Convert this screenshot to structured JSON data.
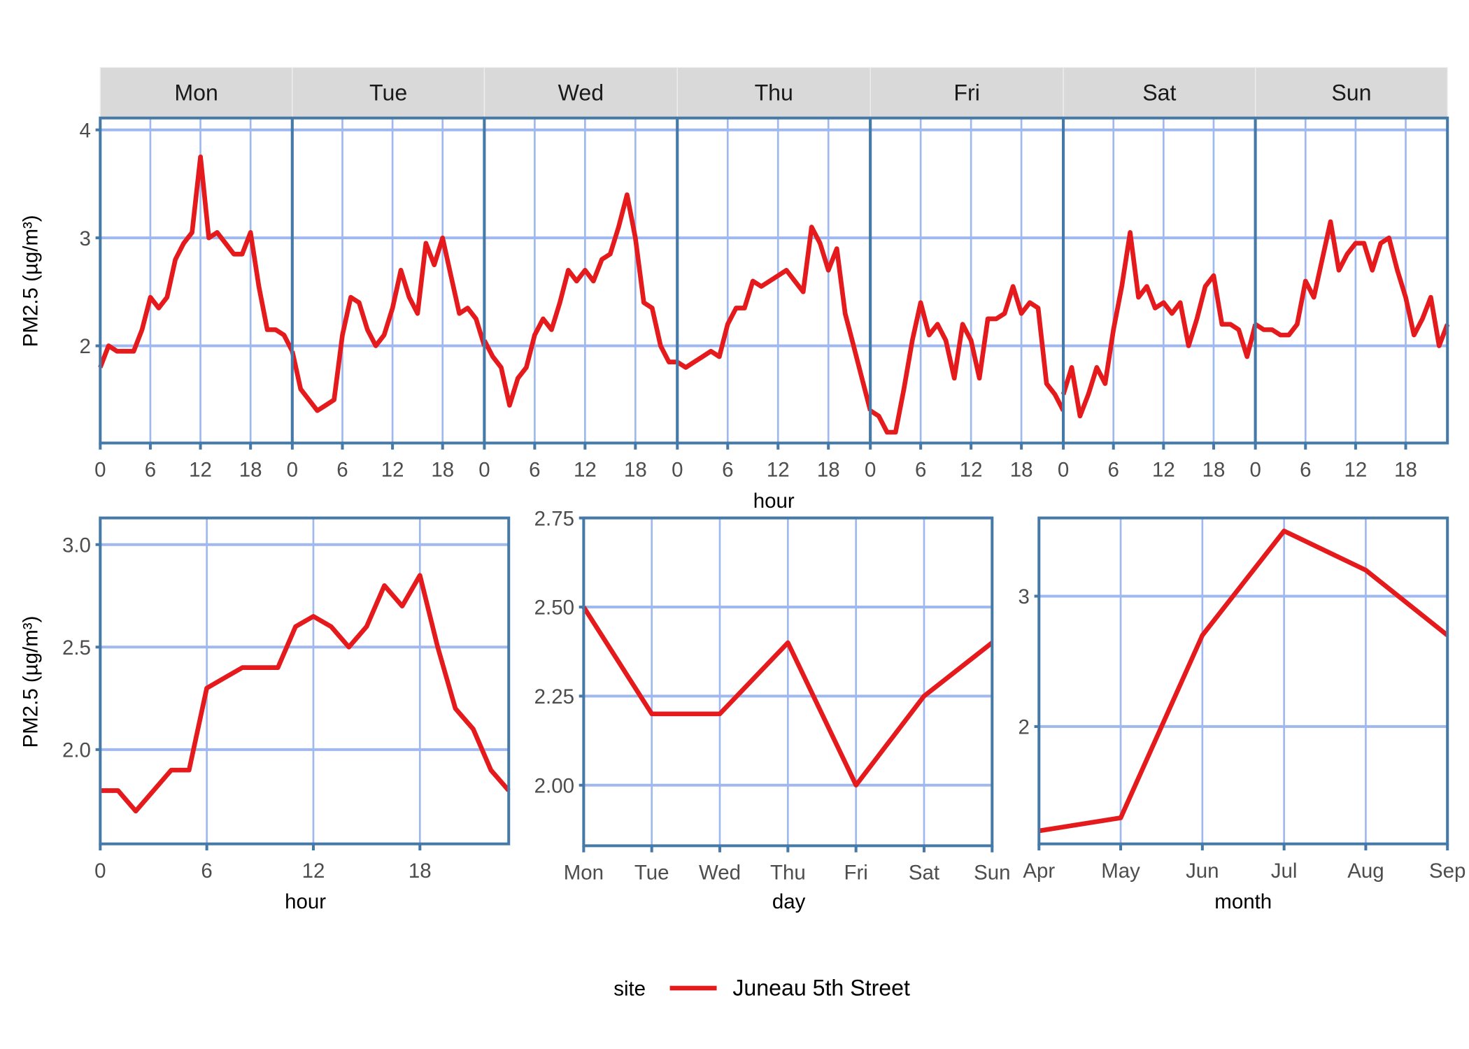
{
  "colors": {
    "line": "#E41A1C",
    "grid": "#A0B8F0",
    "border": "#4479A8",
    "strip": "#D9D9D9"
  },
  "legend": {
    "title": "site",
    "entries": [
      "Juneau 5th Street"
    ],
    "position": "bottom"
  },
  "chart_data": [
    {
      "type": "line",
      "facet_by": "day",
      "panels": [
        "Mon",
        "Tue",
        "Wed",
        "Thu",
        "Fri",
        "Sat",
        "Sun"
      ],
      "xlabel": "hour",
      "ylabel": "PM2.5 (µg/m³)",
      "xticks": [
        0,
        6,
        12,
        18
      ],
      "xlim": [
        0,
        23
      ],
      "yticks": [
        2,
        3,
        4
      ],
      "ytick_labels": [
        "2",
        "3",
        "4"
      ],
      "ylim": [
        1.1,
        4.11
      ],
      "grid": true,
      "series": [
        {
          "name": "Juneau 5th Street",
          "values": {
            "Mon": [
              1.8,
              2.0,
              1.95,
              1.95,
              1.95,
              2.15,
              2.45,
              2.35,
              2.45,
              2.8,
              2.95,
              3.05,
              3.75,
              3.0,
              3.05,
              2.95,
              2.85,
              2.85,
              3.05,
              2.55,
              2.15,
              2.15,
              2.1,
              1.95
            ],
            "Tue": [
              1.95,
              1.6,
              1.5,
              1.4,
              1.45,
              1.5,
              2.1,
              2.45,
              2.4,
              2.15,
              2.0,
              2.1,
              2.35,
              2.7,
              2.45,
              2.3,
              2.95,
              2.75,
              3.0,
              2.65,
              2.3,
              2.35,
              2.25,
              2.0
            ],
            "Wed": [
              2.05,
              1.9,
              1.8,
              1.45,
              1.7,
              1.8,
              2.1,
              2.25,
              2.15,
              2.4,
              2.7,
              2.6,
              2.7,
              2.6,
              2.8,
              2.85,
              3.1,
              3.4,
              3.0,
              2.4,
              2.35,
              2.0,
              1.85,
              1.85
            ],
            "Thu": [
              1.85,
              1.8,
              1.85,
              1.9,
              1.95,
              1.9,
              2.2,
              2.35,
              2.35,
              2.6,
              2.55,
              2.6,
              2.65,
              2.7,
              2.6,
              2.5,
              3.1,
              2.95,
              2.7,
              2.9,
              2.3,
              2.0,
              1.7,
              1.4
            ],
            "Fri": [
              1.4,
              1.35,
              1.2,
              1.2,
              1.6,
              2.05,
              2.4,
              2.1,
              2.2,
              2.05,
              1.7,
              2.2,
              2.05,
              1.7,
              2.25,
              2.25,
              2.3,
              2.55,
              2.3,
              2.4,
              2.35,
              1.65,
              1.55,
              1.4
            ],
            "Sat": [
              1.55,
              1.8,
              1.35,
              1.55,
              1.8,
              1.65,
              2.15,
              2.55,
              3.05,
              2.45,
              2.55,
              2.35,
              2.4,
              2.3,
              2.4,
              2.0,
              2.25,
              2.55,
              2.65,
              2.2,
              2.2,
              2.15,
              1.9,
              2.2
            ],
            "Sun": [
              2.2,
              2.15,
              2.15,
              2.1,
              2.1,
              2.2,
              2.6,
              2.45,
              2.8,
              3.15,
              2.7,
              2.85,
              2.95,
              2.95,
              2.7,
              2.95,
              3.0,
              2.7,
              2.45,
              2.1,
              2.25,
              2.45,
              2.0,
              2.2
            ]
          }
        }
      ]
    },
    {
      "type": "line",
      "xlabel": "hour",
      "ylabel": "PM2.5 (µg/m³)",
      "x": [
        0,
        1,
        2,
        3,
        4,
        5,
        6,
        7,
        8,
        9,
        10,
        11,
        12,
        13,
        14,
        15,
        16,
        17,
        18,
        19,
        20,
        21,
        22,
        23
      ],
      "xticks": [
        0,
        6,
        12,
        18
      ],
      "xlim": [
        0,
        23
      ],
      "yticks": [
        2.0,
        2.5,
        3.0
      ],
      "ytick_labels": [
        "2.0",
        "2.5",
        "3.0"
      ],
      "ylim": [
        1.54,
        3.13
      ],
      "grid": true,
      "series": [
        {
          "name": "Juneau 5th Street",
          "values": [
            1.8,
            1.8,
            1.7,
            1.8,
            1.9,
            1.9,
            2.3,
            2.35,
            2.4,
            2.4,
            2.4,
            2.6,
            2.65,
            2.6,
            2.5,
            2.6,
            2.8,
            2.7,
            2.85,
            2.5,
            2.2,
            2.1,
            1.9,
            1.8
          ]
        }
      ]
    },
    {
      "type": "line",
      "xlabel": "day",
      "categories": [
        "Mon",
        "Tue",
        "Wed",
        "Thu",
        "Fri",
        "Sat",
        "Sun"
      ],
      "yticks": [
        2.0,
        2.25,
        2.5,
        2.75
      ],
      "ytick_labels": [
        "2.00",
        "2.25",
        "2.50",
        "2.75"
      ],
      "ylim": [
        1.83,
        2.75
      ],
      "grid": true,
      "series": [
        {
          "name": "Juneau 5th Street",
          "values": [
            2.5,
            2.2,
            2.2,
            2.4,
            2.0,
            2.25,
            2.4
          ]
        }
      ]
    },
    {
      "type": "line",
      "xlabel": "month",
      "categories": [
        "Apr",
        "May",
        "Jun",
        "Jul",
        "Aug",
        "Sep"
      ],
      "yticks": [
        2,
        3
      ],
      "ytick_labels": [
        "2",
        "3"
      ],
      "ylim": [
        1.1,
        3.6
      ],
      "grid": true,
      "series": [
        {
          "name": "Juneau 5th Street",
          "values": [
            1.2,
            1.3,
            2.7,
            3.5,
            3.2,
            2.7
          ]
        }
      ]
    }
  ]
}
